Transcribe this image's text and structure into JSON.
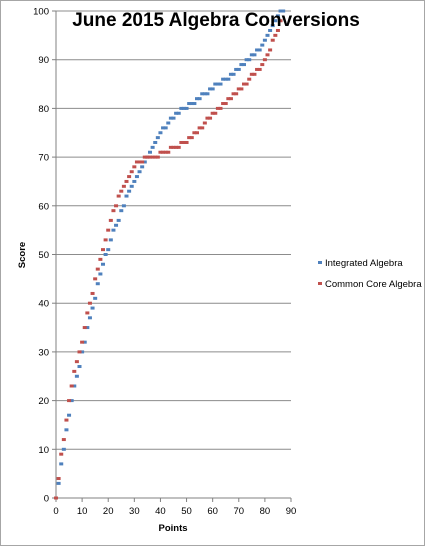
{
  "chart_data": {
    "type": "scatter",
    "title": "June 2015 Algebra Conversions",
    "xlabel": "Points",
    "ylabel": "Score",
    "xlim": [
      0,
      90
    ],
    "ylim": [
      0,
      100
    ],
    "xticks": [
      "0",
      "10",
      "20",
      "30",
      "40",
      "50",
      "60",
      "70",
      "80",
      "90"
    ],
    "yticks": [
      "0",
      "10",
      "20",
      "30",
      "40",
      "50",
      "60",
      "70",
      "80",
      "90",
      "100"
    ],
    "grid": "horizontal",
    "legend_position": "right",
    "series": [
      {
        "name": "Integrated Algebra",
        "color": "#4f81bd",
        "x": [
          0,
          1,
          2,
          3,
          4,
          5,
          6,
          7,
          8,
          9,
          10,
          11,
          12,
          13,
          14,
          15,
          16,
          17,
          18,
          19,
          20,
          21,
          22,
          23,
          24,
          25,
          26,
          27,
          28,
          29,
          30,
          31,
          32,
          33,
          34,
          35,
          36,
          37,
          38,
          39,
          40,
          41,
          42,
          43,
          44,
          45,
          46,
          47,
          48,
          49,
          50,
          51,
          52,
          53,
          54,
          55,
          56,
          57,
          58,
          59,
          60,
          61,
          62,
          63,
          64,
          65,
          66,
          67,
          68,
          69,
          70,
          71,
          72,
          73,
          74,
          75,
          76,
          77,
          78,
          79,
          80,
          81,
          82,
          83,
          84,
          85,
          86,
          87
        ],
        "y": [
          0,
          3,
          7,
          10,
          14,
          17,
          20,
          23,
          25,
          27,
          30,
          32,
          35,
          37,
          39,
          41,
          44,
          46,
          48,
          50,
          51,
          53,
          55,
          56,
          57,
          59,
          60,
          62,
          63,
          64,
          65,
          66,
          67,
          68,
          69,
          70,
          71,
          72,
          73,
          74,
          75,
          76,
          76,
          77,
          78,
          78,
          79,
          79,
          80,
          80,
          80,
          81,
          81,
          81,
          82,
          82,
          83,
          83,
          83,
          84,
          84,
          85,
          85,
          85,
          86,
          86,
          86,
          87,
          87,
          88,
          88,
          89,
          89,
          90,
          90,
          91,
          91,
          92,
          92,
          93,
          94,
          95,
          96,
          97,
          98,
          99,
          100,
          100
        ]
      },
      {
        "name": "Common Core Algebra",
        "color": "#c0504d",
        "x": [
          0,
          1,
          2,
          3,
          4,
          5,
          6,
          7,
          8,
          9,
          10,
          11,
          12,
          13,
          14,
          15,
          16,
          17,
          18,
          19,
          20,
          21,
          22,
          23,
          24,
          25,
          26,
          27,
          28,
          29,
          30,
          31,
          32,
          33,
          34,
          35,
          36,
          37,
          38,
          39,
          40,
          41,
          42,
          43,
          44,
          45,
          46,
          47,
          48,
          49,
          50,
          51,
          52,
          53,
          54,
          55,
          56,
          57,
          58,
          59,
          60,
          61,
          62,
          63,
          64,
          65,
          66,
          67,
          68,
          69,
          70,
          71,
          72,
          73,
          74,
          75,
          76,
          77,
          78,
          79,
          80,
          81,
          82,
          83,
          84,
          85,
          86
        ],
        "y": [
          0,
          4,
          9,
          12,
          16,
          20,
          23,
          26,
          28,
          30,
          32,
          35,
          38,
          40,
          42,
          45,
          47,
          49,
          51,
          53,
          55,
          57,
          59,
          60,
          62,
          63,
          64,
          65,
          66,
          67,
          68,
          69,
          69,
          69,
          70,
          70,
          70,
          70,
          70,
          70,
          71,
          71,
          71,
          71,
          72,
          72,
          72,
          72,
          73,
          73,
          73,
          74,
          74,
          75,
          75,
          76,
          76,
          77,
          78,
          78,
          79,
          79,
          80,
          80,
          81,
          81,
          82,
          82,
          83,
          83,
          84,
          84,
          85,
          85,
          86,
          87,
          87,
          88,
          88,
          89,
          90,
          91,
          92,
          94,
          95,
          96,
          98
        ]
      }
    ]
  }
}
